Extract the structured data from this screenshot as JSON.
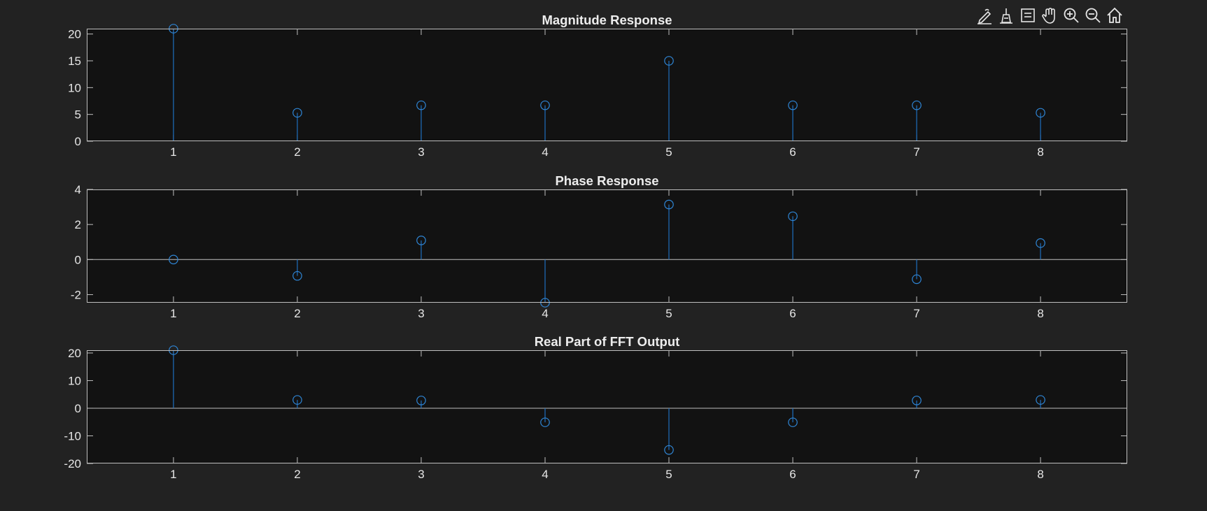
{
  "toolbar": {
    "icons": [
      "edit-plot-icon",
      "brush-icon",
      "data-tips-icon",
      "pan-icon",
      "zoom-in-icon",
      "zoom-out-icon",
      "home-icon"
    ]
  },
  "colors": {
    "figure_bg": "#222222",
    "axes_bg": "#121212",
    "axis_line": "#bfbfbf",
    "text": "#e6e6e6",
    "stem": "#1f6fbf",
    "marker": "#2f86d6"
  },
  "chart_data": [
    {
      "type": "stem",
      "title": "Magnitude Response",
      "xlabel": "",
      "ylabel": "",
      "x": [
        1,
        2,
        3,
        4,
        5,
        6,
        7,
        8
      ],
      "values": [
        21,
        5.3,
        6.7,
        6.7,
        15,
        6.7,
        6.7,
        5.3
      ],
      "xlim": [
        0.3,
        8.7
      ],
      "ylim": [
        0,
        21
      ],
      "xticks": [
        1,
        2,
        3,
        4,
        5,
        6,
        7,
        8
      ],
      "yticks": [
        0,
        5,
        10,
        15,
        20
      ],
      "grid": false
    },
    {
      "type": "stem",
      "title": "Phase Response",
      "xlabel": "",
      "ylabel": "",
      "x": [
        1,
        2,
        3,
        4,
        5,
        6,
        7,
        8
      ],
      "values": [
        0,
        -0.93,
        1.09,
        -2.46,
        3.14,
        2.47,
        -1.12,
        0.94
      ],
      "xlim": [
        0.3,
        8.7
      ],
      "ylim": [
        -2.46,
        4
      ],
      "xticks": [
        1,
        2,
        3,
        4,
        5,
        6,
        7,
        8
      ],
      "yticks": [
        -2,
        0,
        2,
        4
      ],
      "grid": false
    },
    {
      "type": "stem",
      "title": "Real Part of FFT Output",
      "xlabel": "",
      "ylabel": "",
      "x": [
        1,
        2,
        3,
        4,
        5,
        6,
        7,
        8
      ],
      "values": [
        21,
        3,
        2.8,
        -5.1,
        -15.1,
        -5.1,
        2.8,
        3
      ],
      "xlim": [
        0.3,
        8.7
      ],
      "ylim": [
        -20,
        21
      ],
      "xticks": [
        1,
        2,
        3,
        4,
        5,
        6,
        7,
        8
      ],
      "yticks": [
        -20,
        -10,
        0,
        10,
        20
      ],
      "grid": false
    }
  ]
}
